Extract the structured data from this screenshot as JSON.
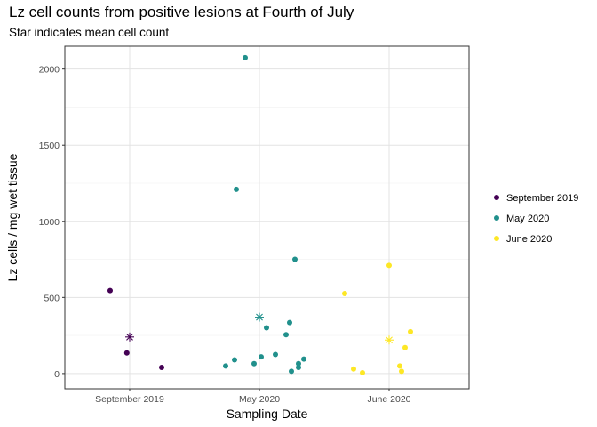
{
  "chart_data": {
    "type": "scatter",
    "title": "Lz cell counts from positive lesions at Fourth of July",
    "subtitle": "Star indicates mean cell count",
    "xlabel": "Sampling Date",
    "ylabel": "Lz cells / mg wet tissue",
    "x_ticks": [
      "September 2019",
      "May 2020",
      "June 2020"
    ],
    "y_ticks": [
      0,
      500,
      1000,
      1500,
      2000
    ],
    "ylim": [
      -100,
      2150
    ],
    "grid": true,
    "legend_position": "right",
    "series": [
      {
        "name": "September 2019",
        "color": "#440154",
        "x_offsets": [
          -0.55,
          -0.08,
          0.9
        ],
        "values": [
          545,
          135,
          40
        ],
        "mean": 240
      },
      {
        "name": "May 2020",
        "color": "#21908C",
        "x_offsets": [
          -0.95,
          -0.7,
          -0.65,
          -0.4,
          -0.15,
          0.05,
          0.2,
          0.45,
          0.75,
          0.85,
          0.9,
          1.0,
          1.1,
          1.1,
          1.25
        ],
        "values": [
          50,
          90,
          1210,
          2075,
          65,
          110,
          300,
          125,
          255,
          335,
          15,
          750,
          40,
          65,
          95
        ],
        "mean": 370
      },
      {
        "name": "June 2020",
        "color": "#FDE725",
        "x_offsets": [
          -1.25,
          -1.0,
          -0.75,
          0.0,
          0.3,
          0.35,
          0.45,
          0.6
        ],
        "values": [
          525,
          30,
          5,
          710,
          50,
          15,
          170,
          275
        ],
        "mean": 220
      }
    ]
  }
}
